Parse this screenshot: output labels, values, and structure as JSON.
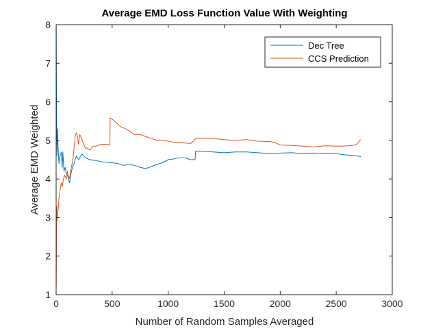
{
  "chart_data": {
    "type": "line",
    "title": "Average EMD Loss Function Value With Weighting",
    "xlabel": "Number of Random Samples Averaged",
    "ylabel": "Average EMD Weighted",
    "xlim": [
      0,
      3000
    ],
    "ylim": [
      1,
      8
    ],
    "x_ticks": [
      "0",
      "500",
      "1000",
      "1500",
      "2000",
      "2500",
      "3000"
    ],
    "y_ticks": [
      "1",
      "2",
      "3",
      "4",
      "5",
      "6",
      "7",
      "8"
    ],
    "grid": false,
    "legend_position": "top-right",
    "series": [
      {
        "name": "Dec Tree",
        "color": "#0072BD",
        "points": [
          [
            1,
            8.0
          ],
          [
            3,
            6.2
          ],
          [
            5,
            5.4
          ],
          [
            8,
            4.6
          ],
          [
            12,
            5.3
          ],
          [
            18,
            4.8
          ],
          [
            25,
            4.4
          ],
          [
            35,
            4.6
          ],
          [
            45,
            4.7
          ],
          [
            55,
            4.3
          ],
          [
            60,
            4.7
          ],
          [
            70,
            4.2
          ],
          [
            80,
            4.3
          ],
          [
            90,
            4.15
          ],
          [
            100,
            4.1
          ],
          [
            110,
            4.0
          ],
          [
            120,
            3.9
          ],
          [
            130,
            4.1
          ],
          [
            145,
            4.3
          ],
          [
            160,
            4.4
          ],
          [
            180,
            4.6
          ],
          [
            200,
            4.5
          ],
          [
            230,
            4.65
          ],
          [
            260,
            4.55
          ],
          [
            300,
            4.5
          ],
          [
            350,
            4.48
          ],
          [
            400,
            4.45
          ],
          [
            450,
            4.43
          ],
          [
            500,
            4.42
          ],
          [
            550,
            4.4
          ],
          [
            600,
            4.35
          ],
          [
            650,
            4.38
          ],
          [
            700,
            4.35
          ],
          [
            750,
            4.3
          ],
          [
            800,
            4.27
          ],
          [
            850,
            4.32
          ],
          [
            900,
            4.38
          ],
          [
            950,
            4.42
          ],
          [
            1000,
            4.5
          ],
          [
            1050,
            4.52
          ],
          [
            1100,
            4.55
          ],
          [
            1150,
            4.55
          ],
          [
            1200,
            4.5
          ],
          [
            1240,
            4.5
          ],
          [
            1245,
            4.72
          ],
          [
            1300,
            4.72
          ],
          [
            1400,
            4.7
          ],
          [
            1500,
            4.68
          ],
          [
            1600,
            4.7
          ],
          [
            1700,
            4.7
          ],
          [
            1800,
            4.68
          ],
          [
            1900,
            4.66
          ],
          [
            2000,
            4.67
          ],
          [
            2100,
            4.68
          ],
          [
            2200,
            4.66
          ],
          [
            2300,
            4.67
          ],
          [
            2400,
            4.66
          ],
          [
            2500,
            4.67
          ],
          [
            2550,
            4.63
          ],
          [
            2600,
            4.62
          ],
          [
            2650,
            4.61
          ],
          [
            2700,
            4.59
          ],
          [
            2720,
            4.58
          ]
        ]
      },
      {
        "name": "CCS Prediction",
        "color": "#D95319",
        "points": [
          [
            1,
            1.2
          ],
          [
            3,
            2.4
          ],
          [
            5,
            3.3
          ],
          [
            8,
            2.9
          ],
          [
            12,
            3.1
          ],
          [
            18,
            3.2
          ],
          [
            25,
            3.5
          ],
          [
            35,
            3.7
          ],
          [
            45,
            3.9
          ],
          [
            55,
            3.8
          ],
          [
            65,
            4.0
          ],
          [
            75,
            4.1
          ],
          [
            90,
            4.0
          ],
          [
            100,
            4.2
          ],
          [
            115,
            4.0
          ],
          [
            125,
            4.1
          ],
          [
            135,
            4.3
          ],
          [
            150,
            4.5
          ],
          [
            160,
            4.8
          ],
          [
            170,
            5.1
          ],
          [
            180,
            5.2
          ],
          [
            190,
            5.1
          ],
          [
            200,
            4.9
          ],
          [
            210,
            5.15
          ],
          [
            220,
            5.1
          ],
          [
            240,
            4.95
          ],
          [
            260,
            4.8
          ],
          [
            280,
            4.8
          ],
          [
            300,
            4.75
          ],
          [
            330,
            4.85
          ],
          [
            360,
            4.85
          ],
          [
            400,
            4.9
          ],
          [
            450,
            4.9
          ],
          [
            480,
            4.88
          ],
          [
            482,
            5.58
          ],
          [
            500,
            5.55
          ],
          [
            540,
            5.45
          ],
          [
            580,
            5.35
          ],
          [
            620,
            5.3
          ],
          [
            650,
            5.25
          ],
          [
            700,
            5.15
          ],
          [
            750,
            5.15
          ],
          [
            800,
            5.1
          ],
          [
            850,
            5.05
          ],
          [
            900,
            5.0
          ],
          [
            950,
            5.0
          ],
          [
            1000,
            4.98
          ],
          [
            1050,
            4.95
          ],
          [
            1100,
            4.95
          ],
          [
            1150,
            4.93
          ],
          [
            1200,
            4.92
          ],
          [
            1250,
            5.05
          ],
          [
            1300,
            5.05
          ],
          [
            1400,
            5.05
          ],
          [
            1500,
            5.02
          ],
          [
            1600,
            5.0
          ],
          [
            1700,
            5.02
          ],
          [
            1800,
            4.98
          ],
          [
            1900,
            4.97
          ],
          [
            1950,
            4.95
          ],
          [
            2000,
            4.88
          ],
          [
            2100,
            4.87
          ],
          [
            2200,
            4.85
          ],
          [
            2300,
            4.83
          ],
          [
            2400,
            4.86
          ],
          [
            2500,
            4.85
          ],
          [
            2550,
            4.85
          ],
          [
            2600,
            4.86
          ],
          [
            2650,
            4.87
          ],
          [
            2680,
            4.9
          ],
          [
            2700,
            4.95
          ],
          [
            2710,
            5.0
          ],
          [
            2720,
            5.02
          ]
        ]
      }
    ]
  }
}
